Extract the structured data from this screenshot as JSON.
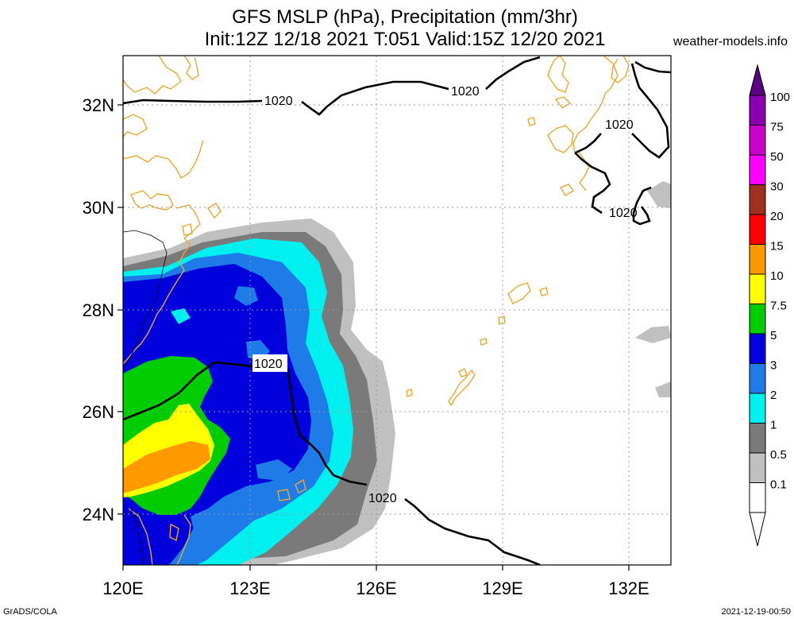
{
  "header": {
    "title_line1": "GFS MSLP (hPa), Precipitation (mm/3hr)",
    "title_line2": "Init:12Z 12/18 2021 T:051 Valid:15Z 12/20 2021",
    "source": "weather-models.info"
  },
  "axes": {
    "lon_labels": [
      "120E",
      "123E",
      "126E",
      "129E",
      "132E"
    ],
    "lat_labels": [
      "32N",
      "30N",
      "28N",
      "26N",
      "24N"
    ]
  },
  "isobars": {
    "label": "1020",
    "labels": [
      "1020",
      "1020",
      "1020",
      "1020",
      "1020",
      "1020"
    ]
  },
  "legend": {
    "labels": [
      "100",
      "75",
      "50",
      "30",
      "20",
      "15",
      "10",
      "7.5",
      "5",
      "3",
      "2",
      "1",
      "0.5",
      "0.1"
    ],
    "colors": [
      "#5a0080",
      "#8a00b0",
      "#cc00cc",
      "#ff00ff",
      "#a03020",
      "#ff0000",
      "#ff9900",
      "#ffff00",
      "#00cc00",
      "#0000dd",
      "#1e7be8",
      "#00f0f0",
      "#7a7a7a",
      "#c0c0c0",
      "#ffffff"
    ]
  },
  "footer": {
    "left": "GrADS/COLA",
    "right": "2021-12-19-00:50"
  }
}
